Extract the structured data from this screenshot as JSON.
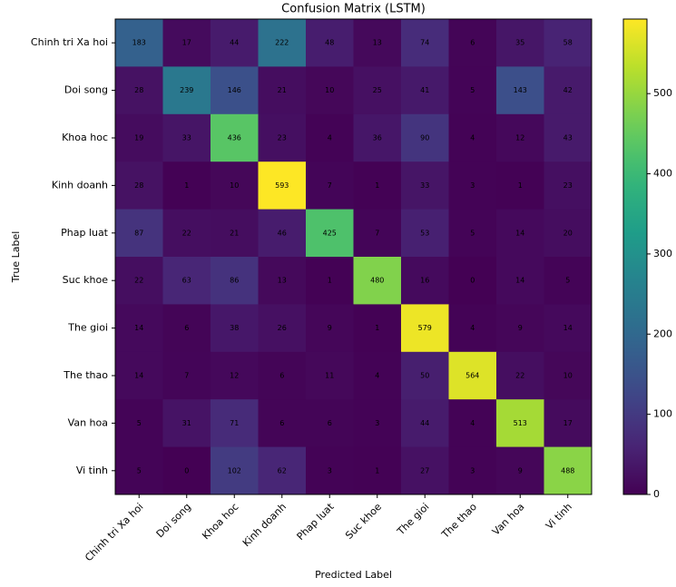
{
  "chart_data": {
    "type": "heatmap",
    "title": "Confusion Matrix (LSTM)",
    "x_label": "Predicted Label",
    "y_label": "True Label",
    "x_categories": [
      "Chinh tri Xa hoi",
      "Doi song",
      "Khoa hoc",
      "Kinh doanh",
      "Phap luat",
      "Suc khoe",
      "The gioi",
      "The thao",
      "Van hoa",
      "Vi tinh"
    ],
    "y_categories": [
      "Chinh tri Xa hoi",
      "Doi song",
      "Khoa hoc",
      "Kinh doanh",
      "Phap luat",
      "Suc khoe",
      "The gioi",
      "The thao",
      "Van hoa",
      "Vi tinh"
    ],
    "values": [
      [
        183,
        17,
        44,
        222,
        48,
        13,
        74,
        6,
        35,
        58
      ],
      [
        28,
        239,
        146,
        21,
        10,
        25,
        41,
        5,
        143,
        42
      ],
      [
        19,
        33,
        436,
        23,
        4,
        36,
        90,
        4,
        12,
        43
      ],
      [
        28,
        1,
        10,
        593,
        7,
        1,
        33,
        3,
        1,
        23
      ],
      [
        87,
        22,
        21,
        46,
        425,
        7,
        53,
        5,
        14,
        20
      ],
      [
        22,
        63,
        86,
        13,
        1,
        480,
        16,
        0,
        14,
        5
      ],
      [
        14,
        6,
        38,
        26,
        9,
        1,
        579,
        4,
        9,
        14
      ],
      [
        14,
        7,
        12,
        6,
        11,
        4,
        50,
        564,
        22,
        10
      ],
      [
        5,
        31,
        71,
        6,
        6,
        3,
        44,
        4,
        513,
        17
      ],
      [
        5,
        0,
        102,
        62,
        3,
        1,
        27,
        3,
        9,
        488
      ]
    ],
    "colormap": "viridis",
    "zlim": [
      0,
      593
    ],
    "colorbar_ticks": [
      0,
      100,
      200,
      300,
      400,
      500
    ]
  }
}
